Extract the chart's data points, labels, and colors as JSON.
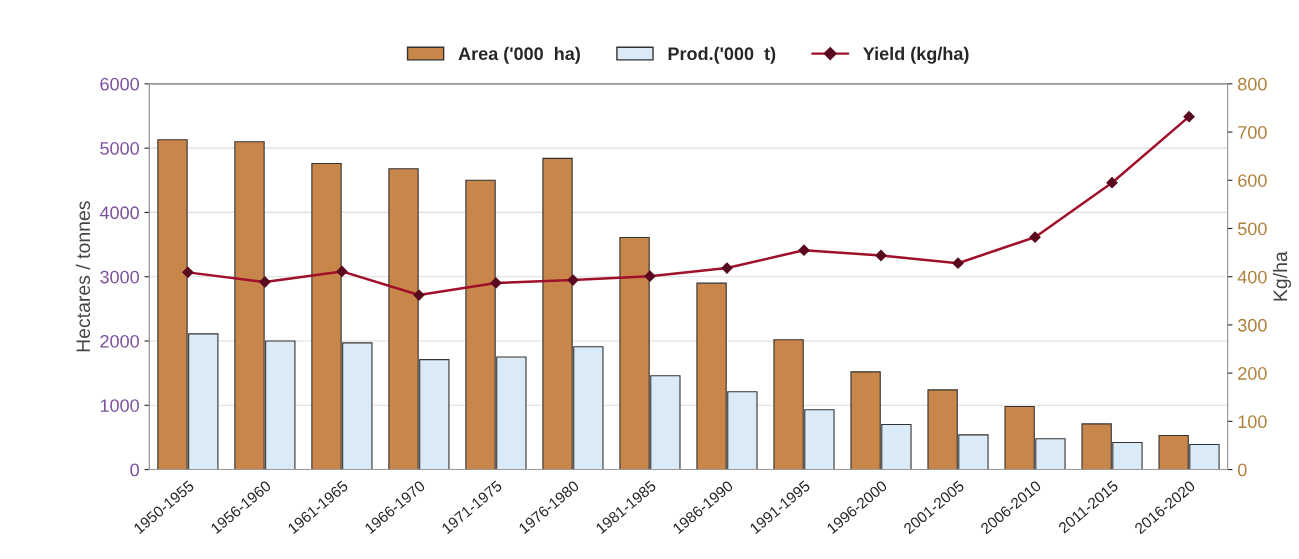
{
  "chart_data": {
    "type": "bar",
    "categories": [
      "1950-1955",
      "1956-1960",
      "1961-1965",
      "1966-1970",
      "1971-1975",
      "1976-1980",
      "1981-1985",
      "1986-1990",
      "1991-1995",
      "1996-2000",
      "2001-2005",
      "2006-2010",
      "2011-2015",
      "2016-2020"
    ],
    "series": [
      {
        "name": "Area ('000  ha)",
        "color": "#c8864a",
        "values": [
          5130,
          5100,
          4760,
          4680,
          4500,
          4840,
          3610,
          2900,
          2020,
          1520,
          1240,
          980,
          710,
          530
        ]
      },
      {
        "name": "Prod.('000  t)",
        "color": "#dbeaf7",
        "values": [
          2110,
          2000,
          1970,
          1710,
          1750,
          1910,
          1460,
          1210,
          930,
          700,
          540,
          480,
          420,
          390
        ]
      },
      {
        "name": "Yield (kg/ha)",
        "type": "line",
        "axis": "y2",
        "color": "#a0102a",
        "marker": "diamond",
        "values": [
          409,
          389,
          411,
          362,
          387,
          393,
          401,
          418,
          455,
          444,
          428,
          482,
          595,
          732
        ]
      }
    ],
    "ylabel": "Hectares / tonnes",
    "y2label": "Kg/ha",
    "ylim": [
      0,
      6000
    ],
    "yticks": [
      0,
      1000,
      2000,
      3000,
      4000,
      5000,
      6000
    ],
    "y2lim": [
      0,
      800
    ],
    "y2ticks": [
      0,
      100,
      200,
      300,
      400,
      500,
      600,
      700,
      800
    ],
    "grid": "y",
    "legend": "top"
  }
}
